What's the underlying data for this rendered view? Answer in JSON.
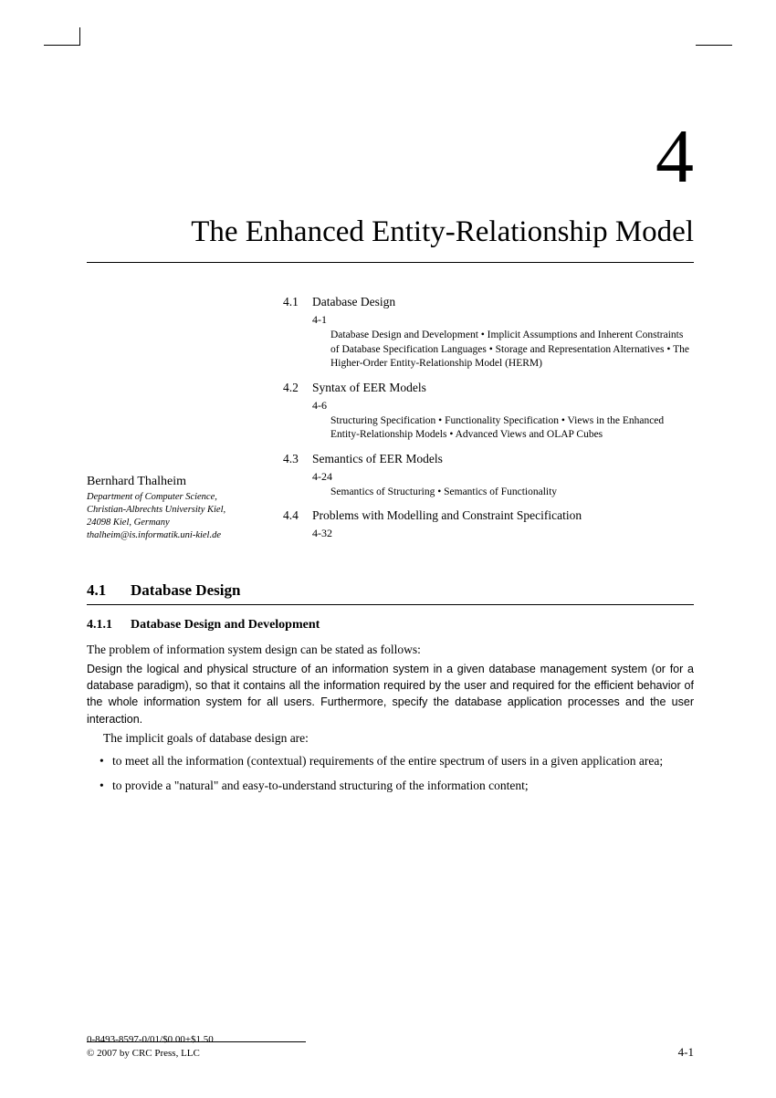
{
  "chapter": {
    "number": "4",
    "title": "The Enhanced Entity-Relationship Model"
  },
  "author": {
    "name": "Bernhard Thalheim",
    "affiliation_lines": [
      "Department of Computer Science,",
      "Christian-Albrechts University Kiel,",
      "24098 Kiel, Germany",
      "thalheim@is.informatik.uni-kiel.de"
    ]
  },
  "toc": [
    {
      "num": "4.1",
      "title": "Database Design",
      "page": "4-1",
      "sub": "Database Design and Development • Implicit Assumptions and Inherent Constraints of Database Specification Languages • Storage and Representation Alternatives • The Higher-Order Entity-Relationship Model (HERM)"
    },
    {
      "num": "4.2",
      "title": "Syntax of EER Models",
      "page": "4-6",
      "sub": "Structuring Specification • Functionality Specification • Views in the Enhanced Entity-Relationship Models • Advanced Views and OLAP Cubes"
    },
    {
      "num": "4.3",
      "title": "Semantics of EER Models",
      "page": "4-24",
      "sub": "Semantics of Structuring • Semantics of Functionality"
    },
    {
      "num": "4.4",
      "title": "Problems with Modelling and Constraint Specification",
      "page": "4-32",
      "sub": ""
    }
  ],
  "section": {
    "num": "4.1",
    "title": "Database Design"
  },
  "subsection": {
    "num": "4.1.1",
    "title": "Database Design and Development"
  },
  "body": {
    "p1": "The problem of information system design can be stated as follows:",
    "p2": "Design the logical and physical structure of an information system in a given database management system (or for a database paradigm), so that it contains all the information required by the user and required for the efficient behavior of the whole information system for all users. Furthermore, specify the database application processes and the user interaction.",
    "p3": "The implicit goals of database design are:",
    "bullets": [
      "to meet all the information (contextual) requirements of the entire spectrum of users in a given application area;",
      "to provide a \"natural\" and easy-to-understand structuring of the information content;"
    ]
  },
  "footer": {
    "line1": "0-8493-8597-0/01/$0.00+$1.50",
    "line2": "© 2007 by CRC Press, LLC",
    "page": "4-1"
  }
}
